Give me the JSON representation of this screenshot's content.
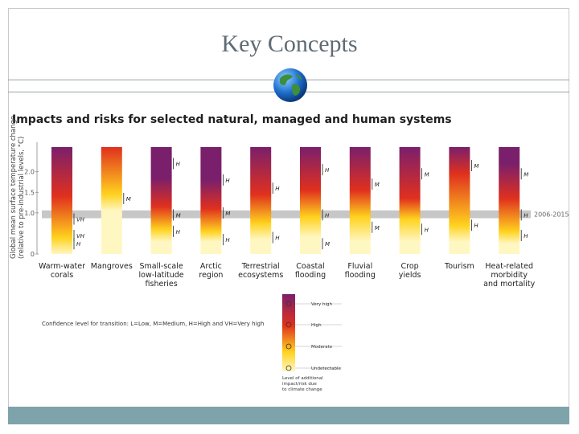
{
  "slide": {
    "title": "Key Concepts"
  },
  "icon": "globe-icon",
  "chart_data": {
    "type": "heatmap",
    "title": "Impacts and risks for selected natural, managed and human systems",
    "ylabel": "Global mean surface temperature change (relative to pre-industrial levels, °C)",
    "yticks": [
      "0",
      "1.0",
      "1.5",
      "2.0"
    ],
    "ylim": [
      0,
      2.6
    ],
    "reference_band": {
      "label": "2006-2015",
      "range": [
        0.87,
        1.06
      ]
    },
    "categories": [
      {
        "name": [
          "Warm-water",
          "corals"
        ],
        "transitions": [
          0.0,
          0.4,
          1.4,
          2.6
        ],
        "labels": [
          {
            "text": "VH",
            "y": 0.85
          },
          {
            "text": "VH",
            "y": 0.45
          },
          {
            "text": "H",
            "y": 0.25
          }
        ]
      },
      {
        "name": [
          "Mangroves"
        ],
        "transitions": [
          1.05,
          1.45,
          2.6,
          2.6
        ],
        "labels": [
          {
            "text": "M",
            "y": 1.35
          }
        ]
      },
      {
        "name": [
          "Small-scale",
          "low-latitude",
          "fisheries"
        ],
        "transitions": [
          0.3,
          0.6,
          1.15,
          1.85
        ],
        "labels": [
          {
            "text": "H",
            "y": 2.2
          },
          {
            "text": "M",
            "y": 0.95
          },
          {
            "text": "H",
            "y": 0.55
          }
        ]
      },
      {
        "name": [
          "Arctic",
          "region"
        ],
        "transitions": [
          0.3,
          0.55,
          1.1,
          1.8
        ],
        "labels": [
          {
            "text": "H",
            "y": 1.8
          },
          {
            "text": "M",
            "y": 1.0
          },
          {
            "text": "H",
            "y": 0.35
          }
        ]
      },
      {
        "name": [
          "Terrestrial",
          "ecosystems"
        ],
        "transitions": [
          0.35,
          0.75,
          1.45,
          2.6
        ],
        "labels": [
          {
            "text": "H",
            "y": 1.6
          },
          {
            "text": "H",
            "y": 0.4
          }
        ]
      },
      {
        "name": [
          "Coastal",
          "flooding"
        ],
        "transitions": [
          0.4,
          0.9,
          1.55,
          2.6
        ],
        "labels": [
          {
            "text": "H",
            "y": 2.05
          },
          {
            "text": "H",
            "y": 0.95
          },
          {
            "text": "M",
            "y": 0.25
          }
        ]
      },
      {
        "name": [
          "Fluvial",
          "flooding"
        ],
        "transitions": [
          0.3,
          0.9,
          1.55,
          2.6
        ],
        "labels": [
          {
            "text": "M",
            "y": 1.7
          },
          {
            "text": "M",
            "y": 0.65
          }
        ]
      },
      {
        "name": [
          "Crop",
          "yields"
        ],
        "transitions": [
          0.3,
          0.85,
          1.35,
          2.6
        ],
        "labels": [
          {
            "text": "M",
            "y": 1.95
          },
          {
            "text": "H",
            "y": 0.6
          }
        ]
      },
      {
        "name": [
          "Tourism"
        ],
        "transitions": [
          0.3,
          0.7,
          1.95,
          2.6
        ],
        "labels": [
          {
            "text": "M",
            "y": 2.15
          },
          {
            "text": "H",
            "y": 0.7
          }
        ]
      },
      {
        "name": [
          "Heat-related",
          "morbidity",
          "and mortality"
        ],
        "transitions": [
          0.25,
          0.55,
          1.35,
          2.2
        ],
        "labels": [
          {
            "text": "M",
            "y": 1.95
          },
          {
            "text": "H",
            "y": 0.95
          },
          {
            "text": "H",
            "y": 0.45
          }
        ]
      }
    ],
    "confidence_note": "Confidence level for transition: L=Low, M=Medium, H=High and VH=Very high",
    "legend": {
      "title": [
        "Level of additional",
        "impact/risk due",
        "to climate change"
      ],
      "levels": [
        "Very high",
        "High",
        "Moderate",
        "Undetectable"
      ]
    },
    "colors": {
      "undetectable": "#fff7c2",
      "moderate": "#ffd21e",
      "high": "#e0301e",
      "very_high": "#7a1f6c",
      "band": "#c7c7c7",
      "footer": "#7fa3ab"
    }
  }
}
